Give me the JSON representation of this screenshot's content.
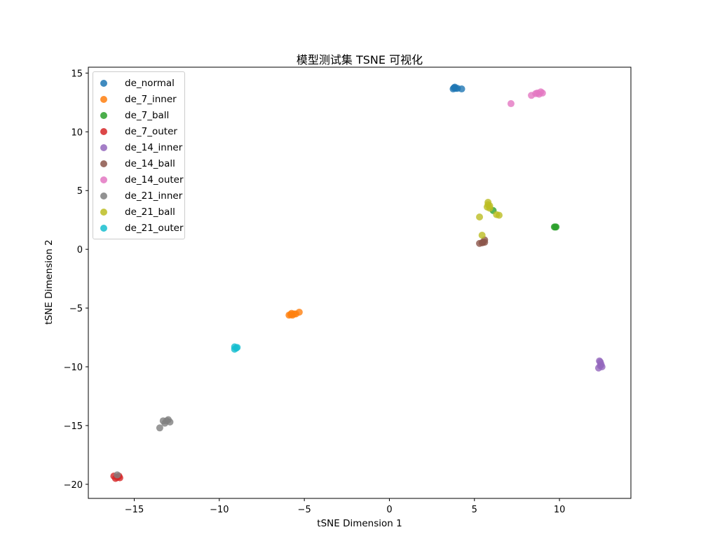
{
  "chart_data": {
    "type": "scatter",
    "title": "模型测试集 TSNE 可视化",
    "xlabel": "tSNE Dimension 1",
    "ylabel": "tSNE Dimension 2",
    "xlim": [
      -17.7,
      14.2
    ],
    "ylim": [
      -21.2,
      15.5
    ],
    "xticks": [
      -15,
      -10,
      -5,
      0,
      5,
      10
    ],
    "yticks": [
      15,
      10,
      5,
      0,
      -5,
      -10,
      -15,
      -20
    ],
    "xtick_labels": [
      "−15",
      "−10",
      "−5",
      "0",
      "5",
      "10"
    ],
    "ytick_labels": [
      "15",
      "10",
      "5",
      "0",
      "−5",
      "−10",
      "−15",
      "−20"
    ],
    "grid": false,
    "legend_position": "upper left",
    "series": [
      {
        "name": "de_normal",
        "color": "#1f77b4",
        "points": [
          [
            3.8,
            13.75
          ],
          [
            3.9,
            13.7
          ],
          [
            3.85,
            13.8
          ],
          [
            4.0,
            13.7
          ],
          [
            3.75,
            13.65
          ],
          [
            4.25,
            13.65
          ]
        ]
      },
      {
        "name": "de_7_inner",
        "color": "#ff7f0e",
        "points": [
          [
            -5.9,
            -5.6
          ],
          [
            -5.8,
            -5.55
          ],
          [
            -5.7,
            -5.6
          ],
          [
            -5.6,
            -5.5
          ],
          [
            -5.75,
            -5.45
          ],
          [
            -5.5,
            -5.5
          ],
          [
            -5.3,
            -5.35
          ]
        ]
      },
      {
        "name": "de_7_ball",
        "color": "#2ca02c",
        "points": [
          [
            9.75,
            1.9
          ],
          [
            9.8,
            1.9
          ],
          [
            9.7,
            1.9
          ],
          [
            6.1,
            3.3
          ]
        ]
      },
      {
        "name": "de_7_outer",
        "color": "#d62728",
        "points": [
          [
            -16.2,
            -19.3
          ],
          [
            -16.0,
            -19.4
          ],
          [
            -15.9,
            -19.3
          ],
          [
            -16.1,
            -19.5
          ],
          [
            -15.85,
            -19.45
          ]
        ]
      },
      {
        "name": "de_14_inner",
        "color": "#9467bd",
        "points": [
          [
            12.4,
            -9.6
          ],
          [
            12.4,
            -9.9
          ],
          [
            12.3,
            -10.1
          ],
          [
            12.5,
            -10.0
          ],
          [
            12.45,
            -9.8
          ],
          [
            12.35,
            -9.5
          ]
        ]
      },
      {
        "name": "de_14_ball",
        "color": "#8c564b",
        "points": [
          [
            5.3,
            0.5
          ],
          [
            5.5,
            0.6
          ],
          [
            5.6,
            0.8
          ],
          [
            5.45,
            0.55
          ],
          [
            5.6,
            0.6
          ]
        ]
      },
      {
        "name": "de_14_outer",
        "color": "#e377c2",
        "points": [
          [
            8.7,
            13.3
          ],
          [
            8.9,
            13.4
          ],
          [
            9.0,
            13.3
          ],
          [
            8.8,
            13.2
          ],
          [
            8.6,
            13.25
          ],
          [
            8.35,
            13.1
          ],
          [
            7.15,
            12.4
          ]
        ]
      },
      {
        "name": "de_21_inner",
        "color": "#7f7f7f",
        "points": [
          [
            -13.3,
            -14.6
          ],
          [
            -13.0,
            -14.5
          ],
          [
            -12.9,
            -14.7
          ],
          [
            -13.2,
            -14.8
          ],
          [
            -13.1,
            -14.6
          ],
          [
            -13.5,
            -15.2
          ],
          [
            -16.0,
            -19.2
          ]
        ]
      },
      {
        "name": "de_21_ball",
        "color": "#bcbd22",
        "points": [
          [
            5.8,
            3.8
          ],
          [
            5.75,
            3.6
          ],
          [
            5.9,
            3.7
          ],
          [
            5.8,
            4.0
          ],
          [
            5.9,
            3.5
          ],
          [
            5.3,
            2.75
          ],
          [
            6.3,
            2.95
          ],
          [
            6.45,
            2.9
          ],
          [
            5.45,
            1.2
          ]
        ]
      },
      {
        "name": "de_21_outer",
        "color": "#17becf",
        "points": [
          [
            -9.1,
            -8.3
          ],
          [
            -9.0,
            -8.4
          ],
          [
            -9.1,
            -8.5
          ],
          [
            -8.95,
            -8.35
          ]
        ]
      }
    ]
  }
}
